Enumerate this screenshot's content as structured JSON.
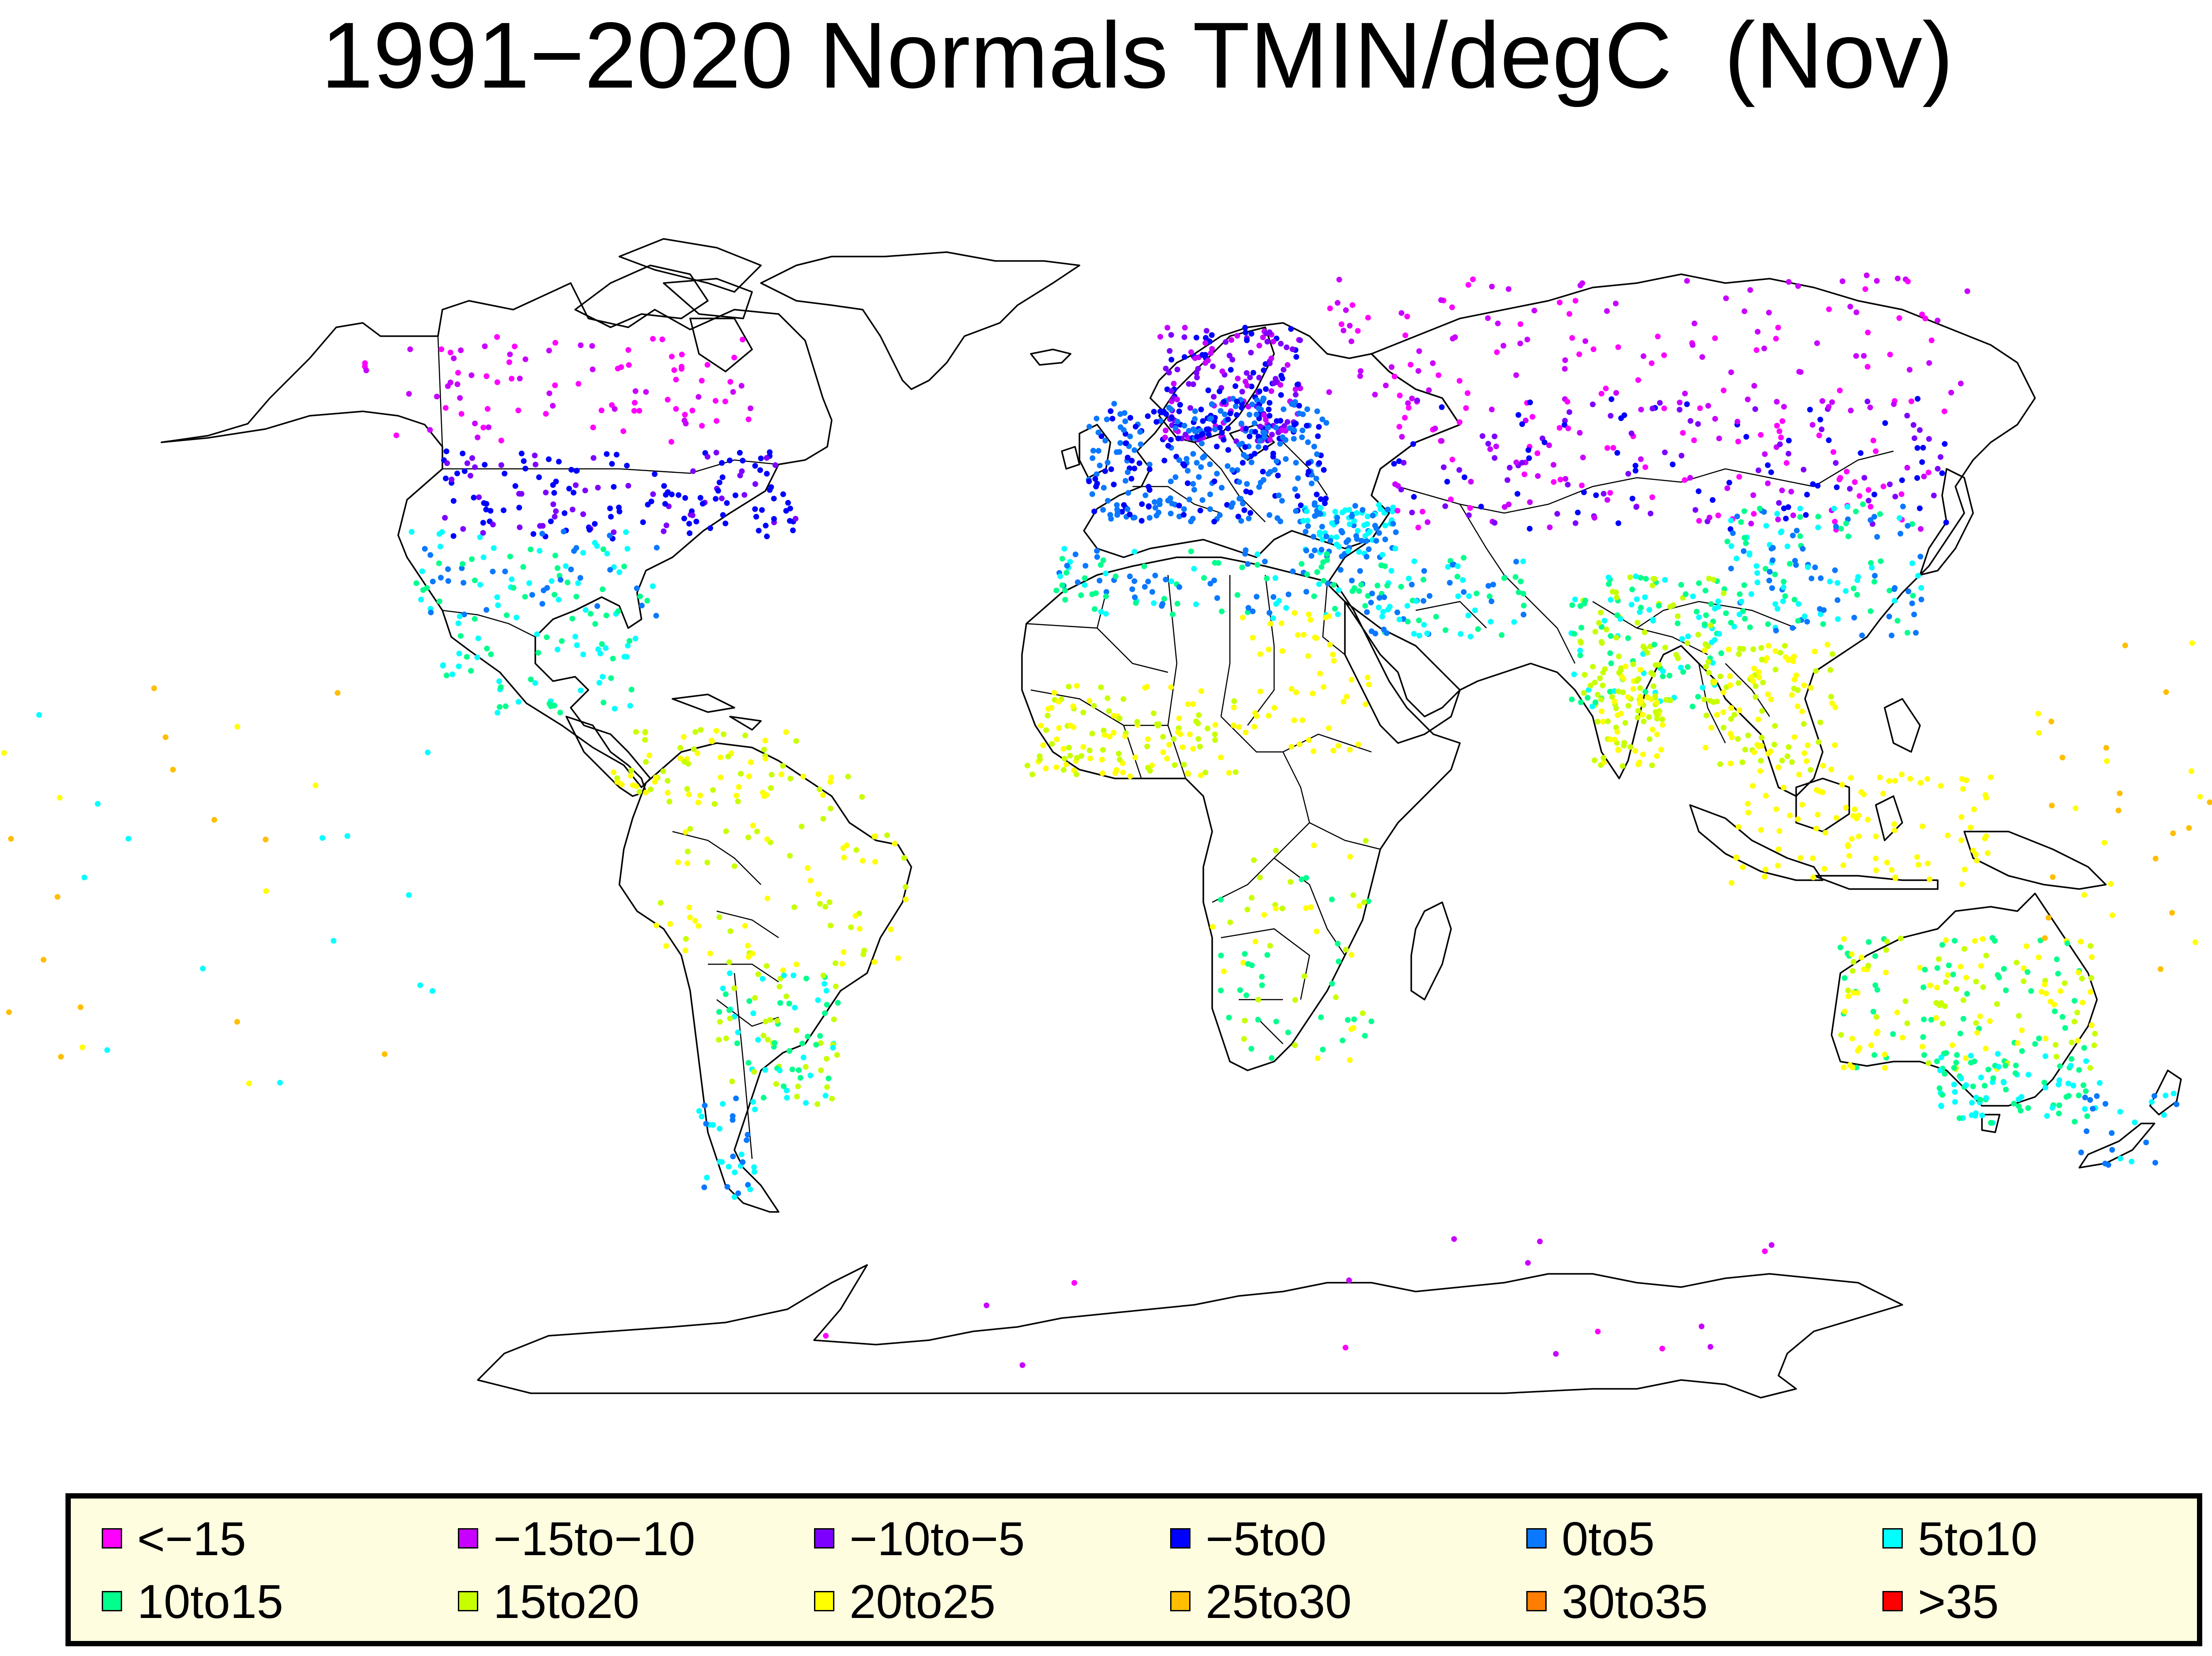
{
  "title": "1991−2020 Normals TMIN/degC  (Nov)",
  "legend": {
    "items": [
      {
        "label": "<−15",
        "color": "#ff00ff"
      },
      {
        "label": "−15to−10",
        "color": "#c800ff"
      },
      {
        "label": "−10to−5",
        "color": "#7d00ff"
      },
      {
        "label": "−5to0",
        "color": "#0000ff"
      },
      {
        "label": "0to5",
        "color": "#0a78ff"
      },
      {
        "label": "5to10",
        "color": "#00ffff"
      },
      {
        "label": "10to15",
        "color": "#00ff8c"
      },
      {
        "label": "15to20",
        "color": "#c8ff00"
      },
      {
        "label": "20to25",
        "color": "#ffff00"
      },
      {
        "label": "25to30",
        "color": "#ffbe00"
      },
      {
        "label": "30to35",
        "color": "#ff7d00"
      },
      {
        "label": ">35",
        "color": "#ff0000"
      }
    ]
  }
}
